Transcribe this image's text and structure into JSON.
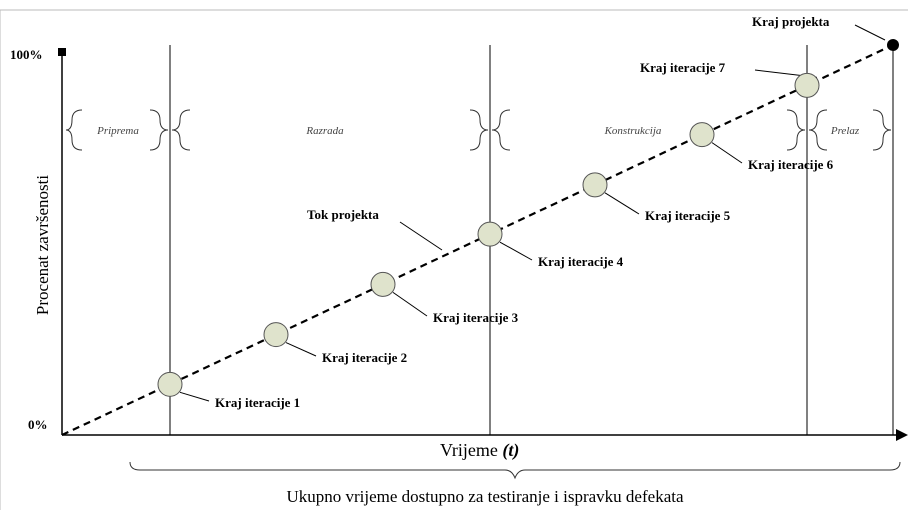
{
  "y_axis": {
    "label": "Procenat završenosti",
    "top": "100%",
    "bottom": "0%"
  },
  "phases": [
    "Priprema",
    "Razrada",
    "Konstrukcija",
    "Prelaz"
  ],
  "iterations": [
    "Kraj iteracije 1",
    "Kraj iteracije 2",
    "Kraj iteracije 3",
    "Kraj iteracije 4",
    "Kraj iteracije 5",
    "Kraj iteracije 6",
    "Kraj iteracije 7"
  ],
  "project_end": "Kraj projekta",
  "project_flow": "Tok projekta",
  "x_axis": {
    "label": "Vrijeme",
    "variable": "(t)"
  },
  "footer": "Ukupno vrijeme dostupno za testiranje i ispravku defekata"
}
